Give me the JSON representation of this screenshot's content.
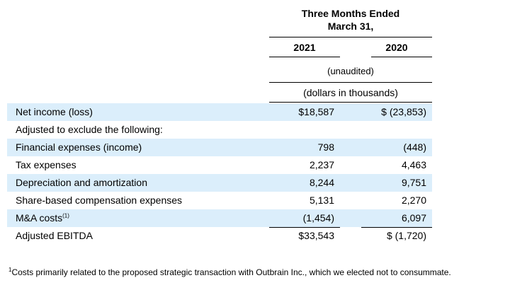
{
  "header": {
    "period_line1": "Three Months Ended",
    "period_line2": "March 31,",
    "year_2021": "2021",
    "year_2020": "2020",
    "unaudited": "(unaudited)",
    "units": "(dollars in thousands)"
  },
  "rows": [
    {
      "label": "Net income (loss)",
      "sup": "",
      "v2021": "$18,587",
      "v2020": "$ (23,853)",
      "shaded": true
    },
    {
      "label": "Adjusted to exclude the following:",
      "sup": "",
      "v2021": "",
      "v2020": "",
      "shaded": false
    },
    {
      "label": "Financial expenses (income)",
      "sup": "",
      "v2021": "798",
      "v2020": "(448)",
      "shaded": true
    },
    {
      "label": "Tax expenses",
      "sup": "",
      "v2021": "2,237",
      "v2020": "4,463",
      "shaded": false
    },
    {
      "label": "Depreciation and amortization",
      "sup": "",
      "v2021": "8,244",
      "v2020": "9,751",
      "shaded": true
    },
    {
      "label": "Share-based compensation expenses",
      "sup": "",
      "v2021": "5,131",
      "v2020": "2,270",
      "shaded": false
    },
    {
      "label": "M&A costs",
      "sup": "(1)",
      "v2021": "(1,454)",
      "v2020": "6,097",
      "shaded": true
    },
    {
      "label": "Adjusted EBITDA",
      "sup": "",
      "v2021": "$33,543",
      "v2020": "$ (1,720)",
      "shaded": false
    }
  ],
  "footnote": {
    "marker": "1",
    "text": "Costs primarily related to the proposed strategic transaction with Outbrain Inc., which we elected not to consummate."
  }
}
